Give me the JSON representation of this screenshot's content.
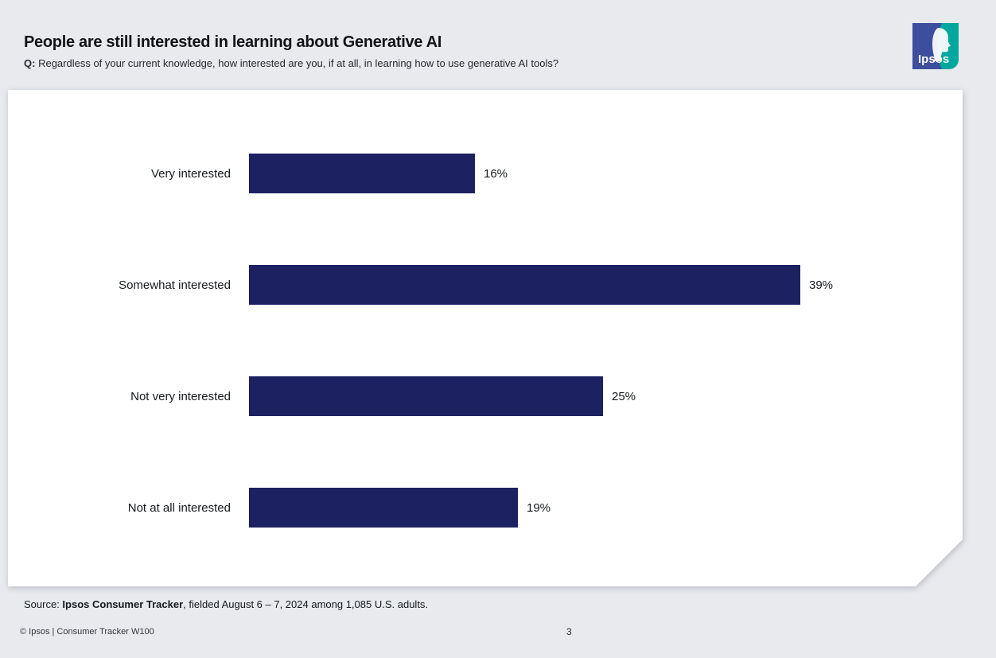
{
  "page": {
    "background_color": "#e8eaee"
  },
  "header": {
    "title": "People are still interested in learning about Generative AI",
    "question_prefix": "Q:",
    "question_text": "Regardless of your current knowledge, how interested are you, if at all, in learning how to use generative AI tools?",
    "logo_text": "Ipsos",
    "logo_blue": "#3d4e9e",
    "logo_teal": "#00a79e"
  },
  "chart_data": {
    "type": "bar",
    "orientation": "horizontal",
    "title": "People are still interested in learning about Generative AI",
    "categories": [
      "Very interested",
      "Somewhat interested",
      "Not very interested",
      "Not at all interested"
    ],
    "values": [
      16,
      39,
      25,
      19
    ],
    "value_labels": [
      "16%",
      "39%",
      "25%",
      "19%"
    ],
    "bar_color": "#1b2161",
    "xlabel": "",
    "ylabel": "",
    "xlim": [
      0,
      100
    ],
    "grid": false,
    "legend": false
  },
  "footer": {
    "source_prefix": "Source: ",
    "source_bold": "Ipsos Consumer Tracker",
    "source_rest": ", fielded August 6 – 7, 2024 among 1,085 U.S. adults.",
    "copyright": "© Ipsos | Consumer Tracker W100",
    "page_number": "3"
  }
}
